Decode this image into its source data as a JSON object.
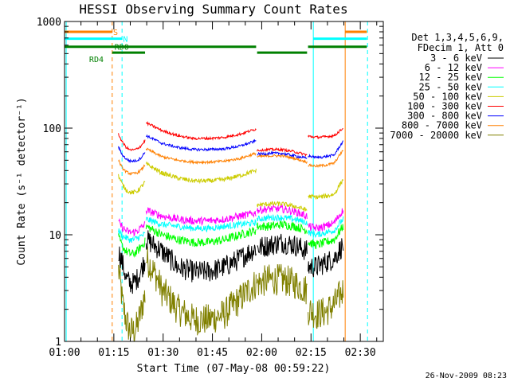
{
  "chart_data": {
    "type": "line",
    "title": "HESSI Observing Summary Count Rates",
    "xlabel": "Start Time (07-May-08 00:59:22)",
    "ylabel": "Count Rate (s⁻¹ detector⁻¹)",
    "yscale": "log",
    "ylim": [
      1,
      1000
    ],
    "xlim_minutes": [
      0,
      97
    ],
    "x_ticks": [
      {
        "label": "01:00",
        "min": 0
      },
      {
        "label": "01:15",
        "min": 15
      },
      {
        "label": "01:30",
        "min": 30
      },
      {
        "label": "01:45",
        "min": 45
      },
      {
        "label": "02:00",
        "min": 60
      },
      {
        "label": "02:15",
        "min": 75
      },
      {
        "label": "02:30",
        "min": 90
      }
    ],
    "y_ticks": [
      {
        "label": "1",
        "value": 1
      },
      {
        "label": "10",
        "value": 10
      },
      {
        "label": "100",
        "value": 100
      },
      {
        "label": "1000",
        "value": 1000
      }
    ],
    "legend_title": [
      "Det 1,3,4,5,6,9,",
      "FDecim 1, Att 0"
    ],
    "legend_placement": "right",
    "series": [
      {
        "name": "3 - 6 keV",
        "color": "#000000",
        "seg1": [
          9,
          7,
          5,
          4.5,
          4.5,
          5,
          6,
          7.5
        ],
        "seg2": [
          7.5,
          8,
          8.5,
          8,
          7
        ],
        "seg3": [
          5,
          5,
          5.5,
          6,
          8
        ]
      },
      {
        "name": "6 - 12 keV",
        "color": "#ff00ff",
        "seg1": [
          17,
          15,
          14,
          13.5,
          13.5,
          14,
          15,
          16
        ],
        "seg2": [
          17,
          17.5,
          17.5,
          16.5,
          15
        ],
        "seg3": [
          12,
          11.5,
          12,
          13,
          17
        ]
      },
      {
        "name": "12 - 25 keV",
        "color": "#00ff00",
        "seg1": [
          12,
          10,
          9,
          8.5,
          8.5,
          9,
          10,
          11
        ],
        "seg2": [
          12,
          12,
          12.5,
          12,
          11
        ],
        "seg3": [
          8.5,
          8,
          8.5,
          9,
          12
        ]
      },
      {
        "name": "25 - 50 keV",
        "color": "#00ffff",
        "seg1": [
          14,
          12.5,
          12,
          11.5,
          11.5,
          12,
          12.5,
          13
        ],
        "seg2": [
          14,
          14.5,
          14.5,
          14,
          13
        ],
        "seg3": [
          10.5,
          10,
          10.5,
          11,
          14
        ]
      },
      {
        "name": "50 - 100 keV",
        "color": "#cccc00",
        "seg1": [
          46,
          38,
          34,
          32,
          32,
          33,
          36,
          40
        ],
        "seg2": [
          19,
          19.5,
          19.5,
          18.5,
          17
        ],
        "seg3": [
          23,
          22.5,
          23,
          24,
          33
        ]
      },
      {
        "name": "100 - 300 keV",
        "color": "#ff0000",
        "seg1": [
          112,
          95,
          85,
          80,
          80,
          82,
          88,
          98
        ],
        "seg2": [
          62,
          63,
          63,
          60,
          56
        ],
        "seg3": [
          84,
          82,
          83,
          85,
          100
        ]
      },
      {
        "name": "300 - 800 keV",
        "color": "#0000ff",
        "seg1": [
          85,
          72,
          66,
          63,
          63,
          64,
          68,
          76
        ],
        "seg2": [
          57,
          58,
          58,
          55,
          52
        ],
        "seg3": [
          55,
          53,
          54,
          56,
          75
        ]
      },
      {
        "name": "800 - 7000 keV",
        "color": "#ff8000",
        "seg1": [
          64,
          54,
          50,
          48,
          48,
          49,
          52,
          58
        ],
        "seg2": [
          54,
          55,
          55,
          52,
          48
        ],
        "seg3": [
          45,
          44,
          45,
          47,
          62
        ]
      },
      {
        "name": "7000 - 20000 keV",
        "color": "#808000",
        "seg1": [
          6,
          3,
          2,
          1.6,
          1.6,
          1.8,
          2.5,
          3.5
        ],
        "seg2": [
          3.5,
          3.8,
          3.8,
          3.5,
          3
        ],
        "seg3": [
          2,
          1.8,
          1.9,
          2.2,
          3
        ]
      }
    ],
    "segments_min": [
      [
        24.8,
        58.3
      ],
      [
        58.6,
        73.8
      ],
      [
        74.1,
        84.8
      ]
    ],
    "pre_segment": {
      "start_min": 16.4,
      "end_min": 24.5,
      "seg1_ratio": 0.78
    },
    "flags": [
      {
        "label": "S",
        "color": "#ff8000",
        "level": 800,
        "ranges": [
          [
            0,
            14.5
          ],
          [
            85.4,
            92
          ]
        ]
      },
      {
        "label": "N",
        "color": "#00ffff",
        "level": 690,
        "ranges": [
          [
            0,
            17.5
          ],
          [
            75.7,
            92
          ]
        ]
      },
      {
        "label": "RD0",
        "color": "#008000",
        "level": 580,
        "ranges": [
          [
            0,
            58.3
          ],
          [
            74.1,
            92
          ]
        ]
      },
      {
        "label": "RD4",
        "color": "#008000",
        "level": 510,
        "ranges": [
          [
            14.5,
            24.5
          ],
          [
            58.6,
            73.8
          ]
        ]
      }
    ],
    "vlines": [
      {
        "min": 0.5,
        "color": "#00ffff",
        "dashed": false
      },
      {
        "min": 14.5,
        "color": "#ff8000",
        "dashed": true
      },
      {
        "min": 17.5,
        "color": "#00ffff",
        "dashed": true
      },
      {
        "min": 75.7,
        "color": "#00ffff",
        "dashed": false
      },
      {
        "min": 85.4,
        "color": "#ff8000",
        "dashed": false
      },
      {
        "min": 92.2,
        "color": "#00ffff",
        "dashed": true
      }
    ],
    "timestamp": "26-Nov-2009 08:23"
  }
}
